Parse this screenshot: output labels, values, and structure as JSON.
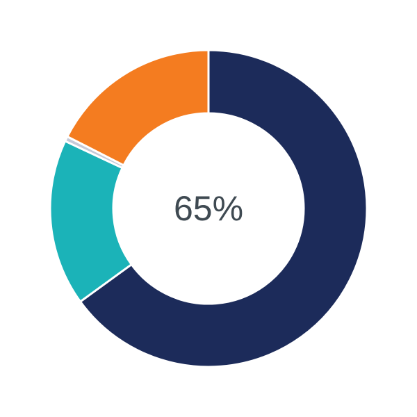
{
  "chart_data": {
    "type": "pie",
    "donut": true,
    "center_label": "65%",
    "slices": [
      {
        "value": 65,
        "color": "#1c2b5a"
      },
      {
        "value": 17,
        "color": "#1bb3b8"
      },
      {
        "value": 0.5,
        "color": "#c5cad8"
      },
      {
        "value": 17.5,
        "color": "#f47c20"
      }
    ],
    "start": "top",
    "direction": "clockwise",
    "legend": "none"
  }
}
